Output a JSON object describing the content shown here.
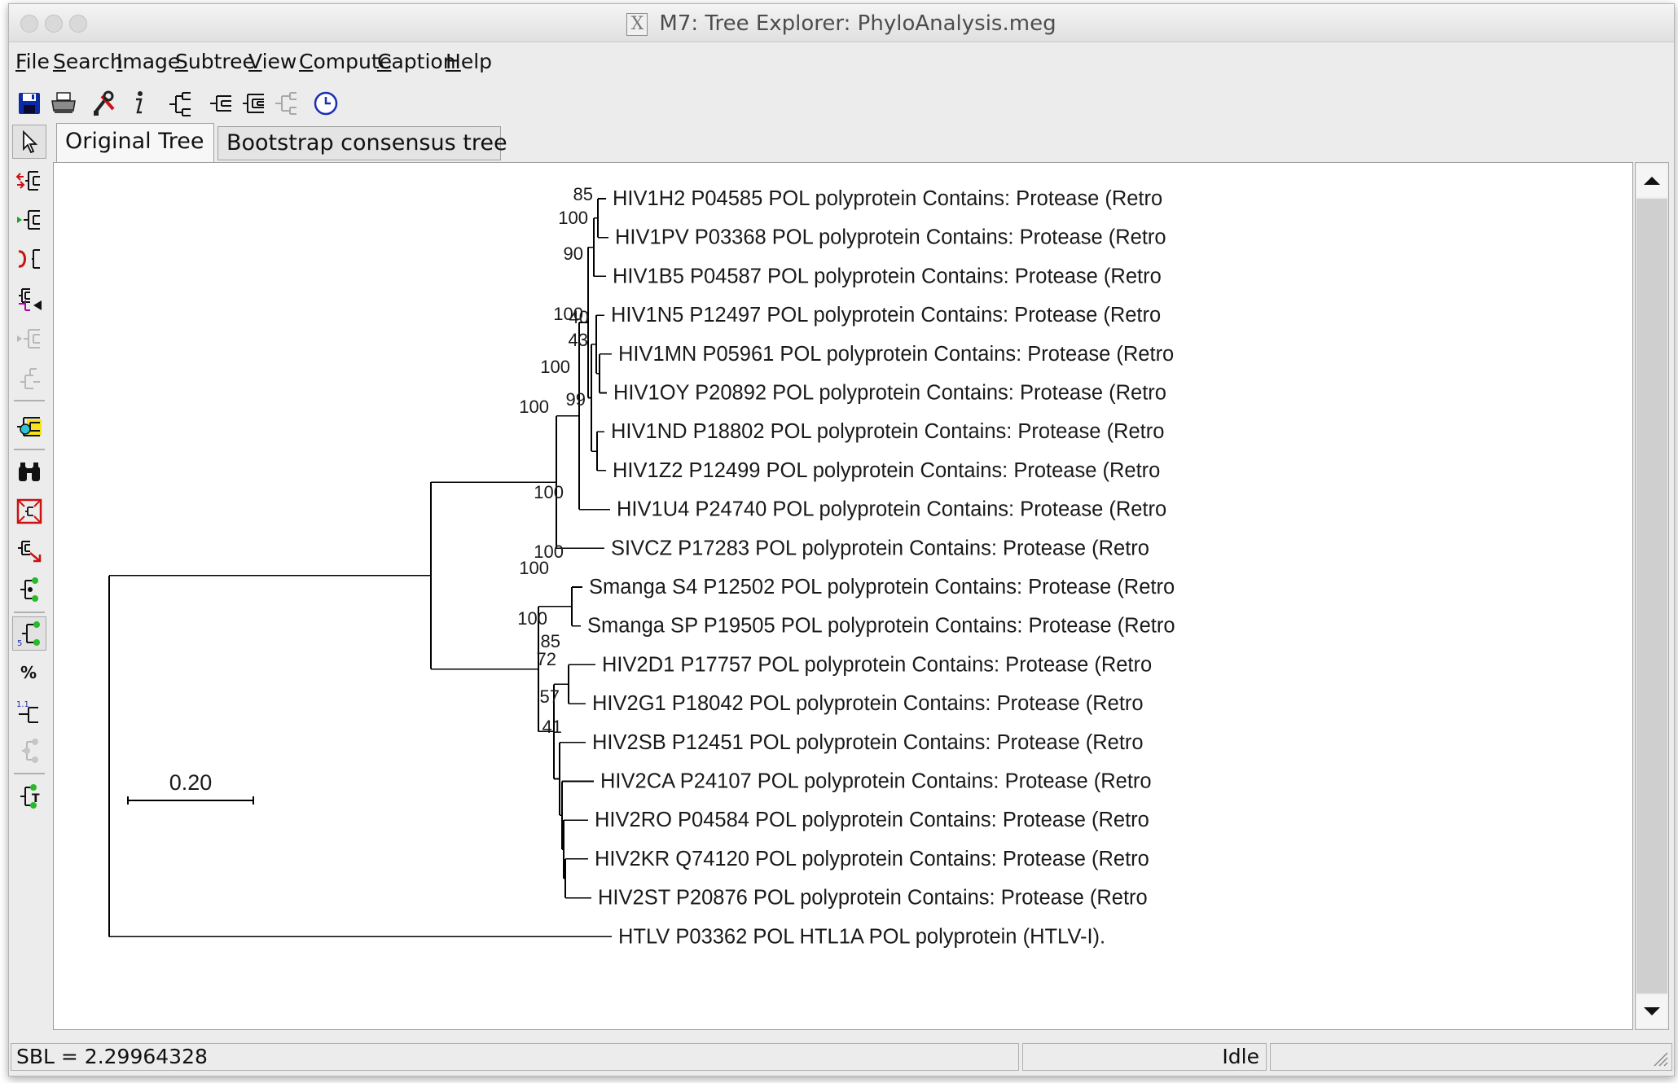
{
  "window": {
    "title": "M7: Tree Explorer: PhyloAnalysis.meg"
  },
  "menu": [
    {
      "label": "File"
    },
    {
      "label": "Search"
    },
    {
      "label": "Image"
    },
    {
      "label": "Subtree"
    },
    {
      "label": "View"
    },
    {
      "label": "Compute"
    },
    {
      "label": "Caption"
    },
    {
      "label": "Help"
    }
  ],
  "toolbar": [
    {
      "icon": "save-icon"
    },
    {
      "icon": "print-icon"
    },
    {
      "icon": "tools-icon"
    },
    {
      "icon": "info-icon"
    },
    {
      "icon": "tree-icon"
    },
    {
      "icon": "tree-collapse-icon"
    },
    {
      "icon": "tree-expand-icon"
    },
    {
      "icon": "tree-disabled-icon"
    },
    {
      "icon": "clock-icon"
    }
  ],
  "tabs": [
    {
      "label": "Original Tree",
      "active": true
    },
    {
      "label": "Bootstrap consensus tree",
      "active": false
    }
  ],
  "tree": {
    "taxa": [
      "HIV1H2 P04585 POL polyprotein Contains: Protease (Retro",
      "HIV1PV P03368 POL polyprotein Contains: Protease (Retro",
      "HIV1B5 P04587 POL polyprotein Contains: Protease (Retro",
      "HIV1N5 P12497 POL polyprotein Contains: Protease (Retro",
      "HIV1MN P05961 POL polyprotein Contains: Protease (Retro",
      "HIV1OY P20892 POL polyprotein Contains: Protease (Retro",
      "HIV1ND P18802 POL polyprotein Contains: Protease (Retro",
      "HIV1Z2 P12499 POL polyprotein Contains: Protease (Retro",
      "HIV1U4 P24740 POL polyprotein Contains: Protease (Retro",
      "SIVCZ P17283 POL polyprotein Contains: Protease (Retro",
      "Smanga S4 P12502 POL polyprotein Contains: Protease (Retro",
      "Smanga SP P19505 POL polyprotein Contains: Protease (Retro",
      "HIV2D1 P17757 POL polyprotein Contains: Protease (Retro",
      "HIV2G1 P18042 POL polyprotein Contains: Protease (Retro",
      "HIV2SB P12451 POL polyprotein Contains: Protease (Retro",
      "HIV2CA P24107 POL polyprotein Contains: Protease (Retro",
      "HIV2RO P04584 POL polyprotein Contains: Protease (Retro",
      "HIV2KR Q74120 POL polyprotein Contains: Protease (Retro",
      "HIV2ST P20876 POL polyprotein Contains: Protease (Retro",
      "HTLV P03362 POL HTL1A POL polyprotein (HTLV-I)."
    ],
    "bootstrap": [
      "85",
      "100",
      "90",
      "100",
      "40",
      "43",
      "100",
      "99",
      "100",
      "100",
      "100",
      "100",
      "100",
      "85",
      "72",
      "57",
      "41"
    ],
    "scale_label": "0.20"
  },
  "status": {
    "sbl": "SBL = 2.29964328",
    "state": "Idle"
  },
  "colors": {
    "window_bg": "#ececec",
    "canvas_bg": "#ffffff",
    "branch": "#000000"
  }
}
